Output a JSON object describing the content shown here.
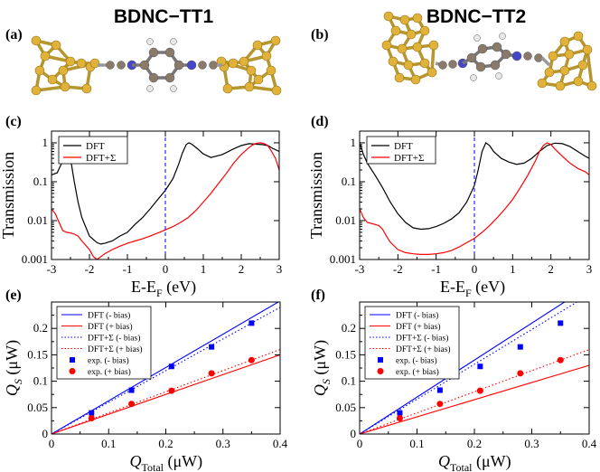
{
  "titles": [
    "BDNC−TT1",
    "BDNC−TT2"
  ],
  "panel_labels": {
    "a": "(a)",
    "b": "(b)",
    "c": "(c)",
    "d": "(d)",
    "e": "(e)",
    "f": "(f)"
  },
  "colors": {
    "dft": "#000000",
    "dftsigma": "#ff0000",
    "neg": "#0000ff",
    "pos": "#ff0000",
    "gold": "#e0b23a",
    "gold_dark": "#9a7415",
    "carbon": "#8a7a6a",
    "nitrogen": "#4646c8",
    "hydrogen": "#e8e8e8"
  },
  "chart_data": [
    {
      "panel": "(c)",
      "type": "line",
      "yscale": "log",
      "xlabel": "E-E",
      "xlabel_sub": "F",
      "xlabel_unit": "(eV)",
      "ylabel": "Transmission",
      "xlim": [
        -3,
        3
      ],
      "ylim": [
        0.001,
        2
      ],
      "xticks": [
        "-3",
        "-2",
        "-1",
        "0",
        "1",
        "2",
        "3"
      ],
      "yticks": [
        "0.001",
        "0.01",
        "0.1",
        "1"
      ],
      "legend": [
        "DFT",
        "DFT+Σ"
      ],
      "legend_position": "top-left",
      "fermi_line": 0,
      "series": [
        {
          "name": "DFT",
          "x": [
            -3.0,
            -2.85,
            -2.7,
            -2.6,
            -2.5,
            -2.4,
            -2.3,
            -2.2,
            -2.0,
            -1.8,
            -1.7,
            -1.6,
            -1.4,
            -1.2,
            -1.0,
            -0.8,
            -0.6,
            -0.4,
            -0.2,
            0.0,
            0.2,
            0.35,
            0.45,
            0.55,
            0.62,
            0.7,
            0.85,
            1.0,
            1.2,
            1.5,
            1.8,
            2.0,
            2.2,
            2.4,
            2.55,
            2.7,
            2.85,
            3.0
          ],
          "y": [
            0.15,
            0.17,
            0.35,
            0.95,
            0.4,
            0.1,
            0.03,
            0.012,
            0.004,
            0.0027,
            0.0025,
            0.0026,
            0.003,
            0.004,
            0.005,
            0.008,
            0.012,
            0.02,
            0.035,
            0.06,
            0.12,
            0.28,
            0.55,
            0.9,
            1.0,
            0.92,
            0.7,
            0.52,
            0.42,
            0.5,
            0.7,
            0.85,
            0.95,
            0.92,
            0.9,
            0.85,
            0.7,
            0.6
          ]
        },
        {
          "name": "DFT+Σ",
          "x": [
            -3.0,
            -2.9,
            -2.8,
            -2.7,
            -2.6,
            -2.5,
            -2.4,
            -2.3,
            -2.2,
            -2.0,
            -1.9,
            -1.8,
            -1.6,
            -1.4,
            -1.2,
            -1.0,
            -0.8,
            -0.6,
            -0.4,
            -0.2,
            0.0,
            0.2,
            0.4,
            0.6,
            0.8,
            1.0,
            1.2,
            1.4,
            1.6,
            1.8,
            2.0,
            2.2,
            2.3,
            2.4,
            2.5,
            2.6,
            2.7,
            2.8,
            2.9,
            3.0
          ],
          "y": [
            0.02,
            0.015,
            0.009,
            0.0055,
            0.005,
            0.0048,
            0.0045,
            0.004,
            0.003,
            0.0018,
            0.0012,
            0.001,
            0.0014,
            0.0018,
            0.0022,
            0.0026,
            0.003,
            0.0034,
            0.004,
            0.0048,
            0.0058,
            0.007,
            0.009,
            0.012,
            0.018,
            0.03,
            0.05,
            0.09,
            0.16,
            0.3,
            0.5,
            0.75,
            0.88,
            0.97,
            1.0,
            0.96,
            0.85,
            0.6,
            0.4,
            0.2
          ]
        }
      ]
    },
    {
      "panel": "(d)",
      "type": "line",
      "yscale": "log",
      "xlabel": "E-E",
      "xlabel_sub": "F",
      "xlabel_unit": "(eV)",
      "ylabel": "Transmission",
      "xlim": [
        -3,
        3
      ],
      "ylim": [
        0.001,
        2
      ],
      "xticks": [
        "-3",
        "-2",
        "-1",
        "0",
        "1",
        "2",
        "3"
      ],
      "yticks": [
        "0.001",
        "0.01",
        "0.1",
        "1"
      ],
      "legend": [
        "DFT",
        "DFT+Σ"
      ],
      "legend_position": "top-left",
      "fermi_line": 0,
      "series": [
        {
          "name": "DFT",
          "x": [
            -3.0,
            -2.9,
            -2.8,
            -2.6,
            -2.4,
            -2.2,
            -2.0,
            -1.8,
            -1.6,
            -1.4,
            -1.2,
            -1.0,
            -0.8,
            -0.6,
            -0.4,
            -0.2,
            0.0,
            0.1,
            0.2,
            0.3,
            0.4,
            0.5,
            0.7,
            0.9,
            1.1,
            1.3,
            1.5,
            1.7,
            1.9,
            2.1,
            2.3,
            2.5,
            2.7,
            2.9,
            3.0
          ],
          "y": [
            1.0,
            0.5,
            0.3,
            0.15,
            0.07,
            0.03,
            0.015,
            0.009,
            0.0065,
            0.006,
            0.0062,
            0.007,
            0.0085,
            0.011,
            0.016,
            0.03,
            0.08,
            0.2,
            0.6,
            1.0,
            0.85,
            0.6,
            0.4,
            0.32,
            0.28,
            0.3,
            0.4,
            0.6,
            0.85,
            0.98,
            0.95,
            0.8,
            0.6,
            0.45,
            0.4
          ]
        },
        {
          "name": "DFT+Σ",
          "x": [
            -3.0,
            -2.9,
            -2.8,
            -2.7,
            -2.6,
            -2.5,
            -2.4,
            -2.3,
            -2.2,
            -2.0,
            -1.8,
            -1.6,
            -1.4,
            -1.2,
            -1.0,
            -0.8,
            -0.6,
            -0.4,
            -0.2,
            0.0,
            0.2,
            0.4,
            0.6,
            0.8,
            1.0,
            1.2,
            1.4,
            1.6,
            1.7,
            1.8,
            1.9,
            2.0,
            2.1,
            2.3,
            2.5,
            2.7,
            2.9,
            3.0
          ],
          "y": [
            0.02,
            0.012,
            0.009,
            0.0085,
            0.008,
            0.0075,
            0.006,
            0.004,
            0.0028,
            0.0018,
            0.0015,
            0.0014,
            0.00135,
            0.00135,
            0.0014,
            0.0015,
            0.0017,
            0.0021,
            0.0027,
            0.0035,
            0.005,
            0.0075,
            0.012,
            0.02,
            0.035,
            0.07,
            0.15,
            0.35,
            0.6,
            0.85,
            1.0,
            0.9,
            0.7,
            0.45,
            0.3,
            0.22,
            0.18,
            0.15
          ]
        }
      ]
    },
    {
      "panel": "(e)",
      "type": "scatter",
      "xlabel": "Q",
      "xlabel_sub": "Total",
      "xlabel_unit": "(μW)",
      "ylabel": "Q",
      "ylabel_sub": "S",
      "ylabel_unit": "(μW)",
      "xlim": [
        0,
        0.4
      ],
      "ylim": [
        0,
        0.25
      ],
      "xticks": [
        "0",
        "0.1",
        "0.2",
        "0.3",
        "0.4"
      ],
      "yticks": [
        "0",
        "0.05",
        "0.1",
        "0.15",
        "0.2"
      ],
      "legend": [
        "DFT (- bias)",
        "DFT (+ bias)",
        "DFT+Σ (- bias)",
        "DFT+Σ (+ bias)",
        "exp. (- bias)",
        "exp. (+ bias)"
      ],
      "legend_position": "top-left",
      "lines": [
        {
          "name": "DFT (- bias)",
          "slope": 0.63,
          "style": "solid",
          "color": "#0000ff"
        },
        {
          "name": "DFT (+ bias)",
          "slope": 0.375,
          "style": "solid",
          "color": "#ff0000"
        },
        {
          "name": "DFT+Σ (- bias)",
          "slope": 0.6,
          "style": "dotted",
          "color": "#0000ff"
        },
        {
          "name": "DFT+Σ (+ bias)",
          "slope": 0.4,
          "style": "dotted",
          "color": "#ff0000"
        }
      ],
      "points": [
        {
          "name": "exp. (- bias)",
          "marker": "square",
          "color": "#0000ff",
          "x": [
            0.07,
            0.14,
            0.21,
            0.28,
            0.35
          ],
          "y": [
            0.04,
            0.083,
            0.128,
            0.165,
            0.21
          ]
        },
        {
          "name": "exp. (+ bias)",
          "marker": "circle",
          "color": "#ff0000",
          "x": [
            0.07,
            0.14,
            0.21,
            0.28,
            0.35
          ],
          "y": [
            0.03,
            0.057,
            0.082,
            0.115,
            0.14
          ]
        }
      ]
    },
    {
      "panel": "(f)",
      "type": "scatter",
      "xlabel": "Q",
      "xlabel_sub": "Total",
      "xlabel_unit": "(μW)",
      "ylabel": "Q",
      "ylabel_sub": "S",
      "ylabel_unit": "(μW)",
      "xlim": [
        0,
        0.4
      ],
      "ylim": [
        0,
        0.25
      ],
      "xticks": [
        "0",
        "0.1",
        "0.2",
        "0.3",
        "0.4"
      ],
      "yticks": [
        "0",
        "0.05",
        "0.1",
        "0.15",
        "0.2"
      ],
      "legend": [
        "DFT (- bias)",
        "DFT (+ bias)",
        "DFT+Σ (- bias)",
        "DFT+Σ (+ bias)",
        "exp. (- bias)",
        "exp. (+ bias)"
      ],
      "legend_position": "top-left",
      "lines": [
        {
          "name": "DFT (- bias)",
          "slope": 0.7,
          "style": "solid",
          "color": "#0000ff"
        },
        {
          "name": "DFT (+ bias)",
          "slope": 0.325,
          "style": "solid",
          "color": "#ff0000"
        },
        {
          "name": "DFT+Σ (- bias)",
          "slope": 0.66,
          "style": "dotted",
          "color": "#0000ff"
        },
        {
          "name": "DFT+Σ (+ bias)",
          "slope": 0.4,
          "style": "dotted",
          "color": "#ff0000"
        }
      ],
      "points": [
        {
          "name": "exp. (- bias)",
          "marker": "square",
          "color": "#0000ff",
          "x": [
            0.07,
            0.14,
            0.21,
            0.28,
            0.35
          ],
          "y": [
            0.04,
            0.083,
            0.128,
            0.165,
            0.21
          ]
        },
        {
          "name": "exp. (+ bias)",
          "marker": "circle",
          "color": "#ff0000",
          "x": [
            0.07,
            0.14,
            0.21,
            0.28,
            0.35
          ],
          "y": [
            0.03,
            0.057,
            0.082,
            0.115,
            0.14
          ]
        }
      ]
    }
  ]
}
